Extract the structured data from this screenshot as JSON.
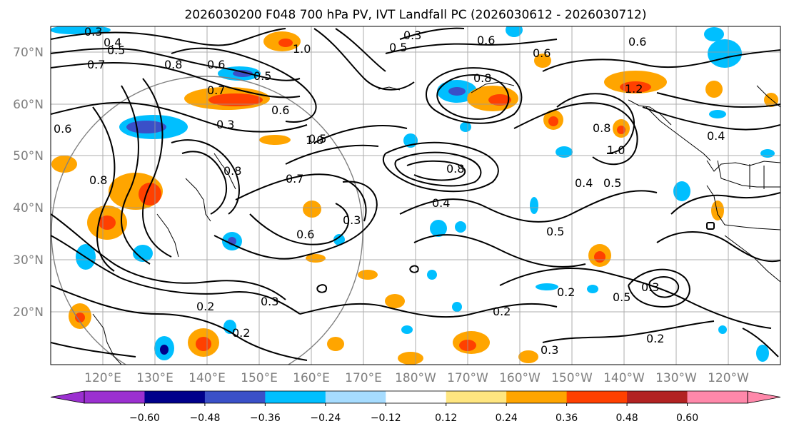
{
  "title": "2026030200 F048 700 hPa PV, IVT Landfall PC (2026030612 - 2026030712)",
  "lat_labels": [
    "70°N",
    "60°N",
    "50°N",
    "40°N",
    "30°N",
    "20°N"
  ],
  "lon_labels": [
    "120°E",
    "130°E",
    "140°E",
    "150°E",
    "160°E",
    "170°E",
    "180°W",
    "170°W",
    "160°W",
    "150°W",
    "140°W",
    "130°W",
    "120°W"
  ],
  "colorbar": {
    "ticks": [
      "−0.60",
      "−0.48",
      "−0.36",
      "−0.24",
      "−0.12",
      "0.12",
      "0.24",
      "0.36",
      "0.48",
      "0.60"
    ],
    "colors": [
      "#9b30d0",
      "#00008b",
      "#3a50c8",
      "#00bfff",
      "#a6dcff",
      "#ffffff",
      "#ffe680",
      "#ffa500",
      "#ff4000",
      "#b22222",
      "#ff88aa"
    ],
    "under_color": "#9b30d0",
    "over_color": "#ff88aa"
  },
  "contour_labels": [
    "0.3",
    "0.4",
    "0.5",
    "0.7",
    "0.8",
    "0.6",
    "1.0",
    "0.5",
    "0.6",
    "0.7",
    "0.3",
    "0.8",
    "0.8",
    "0.6",
    "0.6",
    "1.2",
    "1.0",
    "0.8",
    "0.4",
    "0.5",
    "0.5",
    "0.4",
    "0.6",
    "0.3",
    "0.7",
    "0.6",
    "0.8",
    "0.2",
    "0.2",
    "0.3",
    "0.2",
    "0.3",
    "0.5",
    "0.3",
    "0.2",
    "0.2",
    "0.3",
    "0.6",
    "0.5",
    "1.0",
    "0.4",
    "0.8",
    "0.5"
  ]
}
